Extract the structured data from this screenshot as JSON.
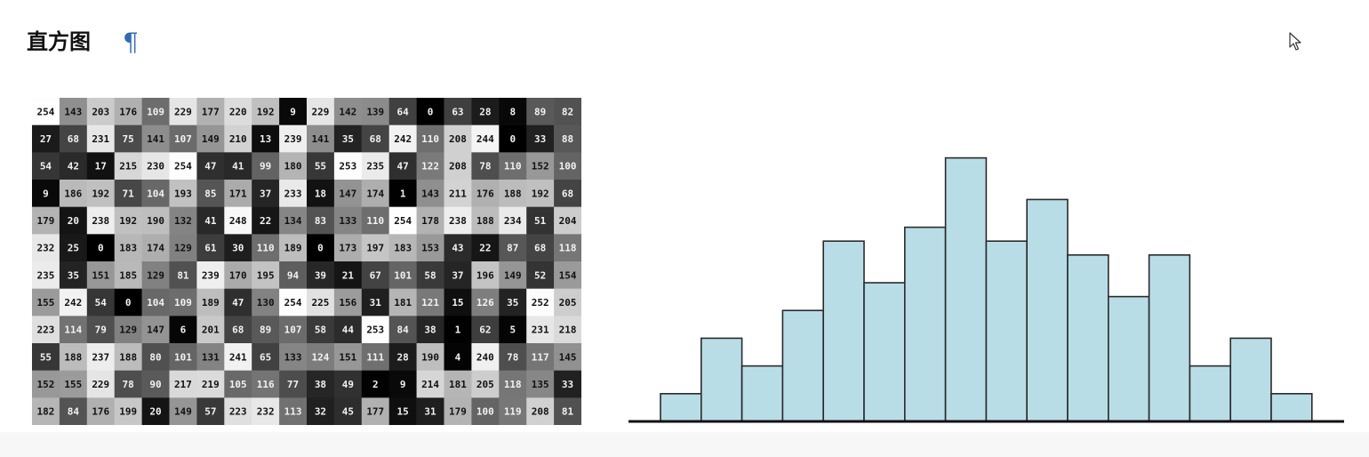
{
  "header": {
    "title": "直方图",
    "pilcrow": "¶"
  },
  "cursor_icon": "arrow-cursor-icon",
  "pixel_grid": {
    "rows": [
      [
        254,
        143,
        203,
        176,
        109,
        229,
        177,
        220,
        192,
        9,
        229,
        142,
        139,
        64,
        0,
        63,
        28,
        8,
        89,
        82
      ],
      [
        27,
        68,
        231,
        75,
        141,
        107,
        149,
        210,
        13,
        239,
        141,
        35,
        68,
        242,
        110,
        208,
        244,
        0,
        33,
        88
      ],
      [
        54,
        42,
        17,
        215,
        230,
        254,
        47,
        41,
        99,
        180,
        55,
        253,
        235,
        47,
        122,
        208,
        78,
        110,
        152,
        100
      ],
      [
        9,
        186,
        192,
        71,
        104,
        193,
        85,
        171,
        37,
        233,
        18,
        147,
        174,
        1,
        143,
        211,
        176,
        188,
        192,
        68
      ],
      [
        179,
        20,
        238,
        192,
        190,
        132,
        41,
        248,
        22,
        134,
        83,
        133,
        110,
        254,
        178,
        238,
        188,
        234,
        51,
        204
      ],
      [
        232,
        25,
        0,
        183,
        174,
        129,
        61,
        30,
        110,
        189,
        0,
        173,
        197,
        183,
        153,
        43,
        22,
        87,
        68,
        118
      ],
      [
        235,
        35,
        151,
        185,
        129,
        81,
        239,
        170,
        195,
        94,
        39,
        21,
        67,
        101,
        58,
        37,
        196,
        149,
        52,
        154
      ],
      [
        155,
        242,
        54,
        0,
        104,
        109,
        189,
        47,
        130,
        254,
        225,
        156,
        31,
        181,
        121,
        15,
        126,
        35,
        252,
        205
      ],
      [
        223,
        114,
        79,
        129,
        147,
        6,
        201,
        68,
        89,
        107,
        58,
        44,
        253,
        84,
        38,
        1,
        62,
        5,
        231,
        218
      ],
      [
        55,
        188,
        237,
        188,
        80,
        101,
        131,
        241,
        65,
        133,
        124,
        151,
        111,
        28,
        190,
        4,
        240,
        78,
        117,
        145
      ],
      [
        152,
        155,
        229,
        78,
        90,
        217,
        219,
        105,
        116,
        77,
        38,
        49,
        2,
        9,
        214,
        181,
        205,
        118,
        135,
        33
      ],
      [
        182,
        84,
        176,
        199,
        20,
        149,
        57,
        223,
        232,
        113,
        32,
        45,
        177,
        15,
        31,
        179,
        100,
        119,
        208,
        81
      ]
    ]
  },
  "chart_data": {
    "type": "bar",
    "title": "",
    "xlabel": "",
    "ylabel": "",
    "values": [
      2,
      6,
      4,
      8,
      13,
      10,
      14,
      19,
      13,
      16,
      12,
      9,
      12,
      4,
      6,
      2
    ],
    "ylim": [
      0,
      20
    ],
    "grid": false,
    "colors": {
      "bar_fill": "#b9dde6",
      "bar_stroke": "#2a2a2a",
      "axis": "#111111"
    }
  }
}
